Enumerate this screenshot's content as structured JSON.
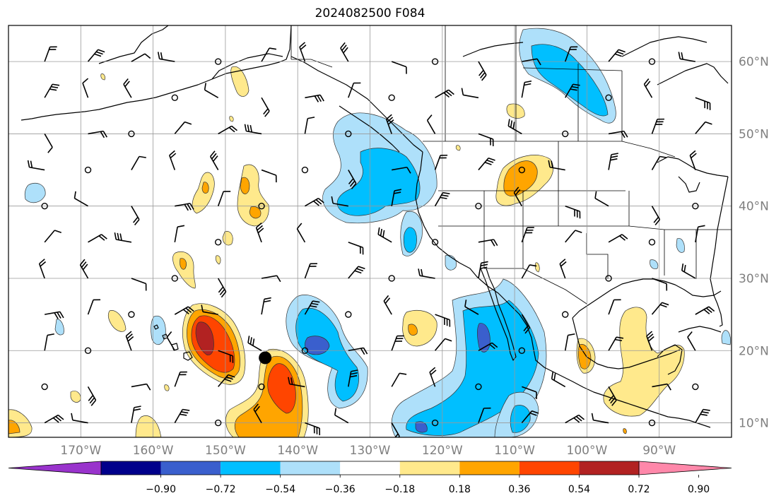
{
  "map": {
    "title": "2024082500 F084",
    "lon_axis": {
      "range": [
        -180,
        -80
      ],
      "ticks": [
        {
          "value": -170,
          "label": "170°W"
        },
        {
          "value": -160,
          "label": "160°W"
        },
        {
          "value": -150,
          "label": "150°W"
        },
        {
          "value": -140,
          "label": "140°W"
        },
        {
          "value": -130,
          "label": "130°W"
        },
        {
          "value": -120,
          "label": "120°W"
        },
        {
          "value": -110,
          "label": "110°W"
        },
        {
          "value": -100,
          "label": "100°W"
        },
        {
          "value": -90,
          "label": "90°W"
        }
      ]
    },
    "lat_axis": {
      "range": [
        8,
        65
      ],
      "ticks": [
        {
          "value": 60,
          "label": "60°N"
        },
        {
          "value": 50,
          "label": "50°N"
        },
        {
          "value": 40,
          "label": "40°N"
        },
        {
          "value": 30,
          "label": "30°N"
        },
        {
          "value": 20,
          "label": "20°N"
        },
        {
          "value": 10,
          "label": "10°N"
        }
      ]
    },
    "grid": true,
    "colorbar": {
      "orientation": "horizontal",
      "placement": "bottom",
      "extend": "both",
      "bins": [
        "#9933cc",
        "#00008b",
        "#3a5fcd",
        "#00bfff",
        "#aee0fa",
        "#ffffff",
        "#ffe98c",
        "#ffa500",
        "#ff4500",
        "#b22222",
        "#ff88aa"
      ],
      "tick_labels": [
        "−0.90",
        "−0.72",
        "−0.54",
        "−0.36",
        "−0.18",
        "0.18",
        "0.36",
        "0.54",
        "0.72",
        "0.90"
      ]
    },
    "marker": {
      "name": "storm-position",
      "lon": -144.5,
      "lat": 19
    }
  }
}
